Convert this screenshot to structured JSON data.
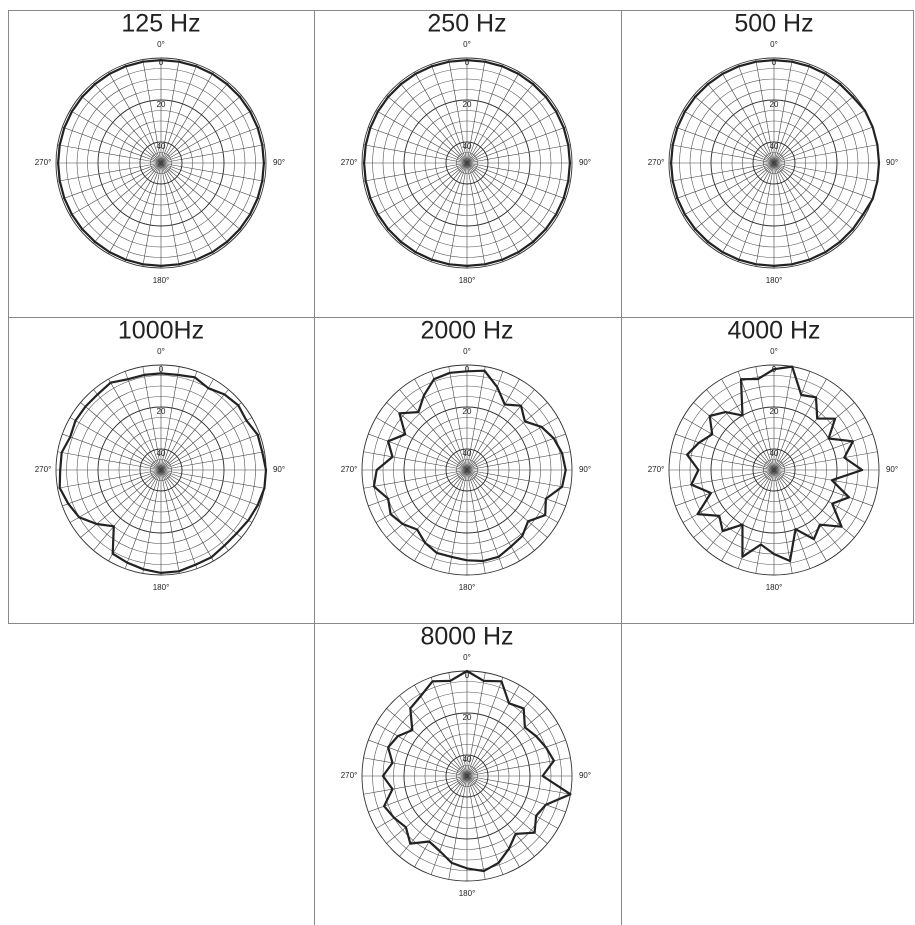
{
  "chart_data": [
    {
      "type": "polar",
      "title": "125 Hz",
      "color": "#222222",
      "theta": [
        0,
        10,
        20,
        30,
        40,
        50,
        60,
        70,
        80,
        90,
        100,
        110,
        120,
        130,
        140,
        150,
        160,
        170,
        180,
        190,
        200,
        210,
        220,
        230,
        240,
        250,
        260,
        270,
        280,
        290,
        300,
        310,
        320,
        330,
        340,
        350
      ],
      "values": [
        1,
        1,
        1,
        1,
        1,
        1,
        1,
        1,
        1,
        1,
        1,
        1,
        1,
        1,
        1,
        1,
        1,
        1,
        1,
        1,
        1,
        1,
        1,
        1,
        1,
        1,
        1,
        1,
        1,
        1,
        1,
        1,
        1,
        1,
        1,
        1
      ],
      "rlim": [
        50,
        0
      ],
      "rticks": [
        0,
        20,
        40
      ],
      "rgrid": [
        5,
        10,
        15,
        20,
        25,
        30,
        35,
        40,
        45
      ],
      "thetaticks": [
        {
          "value": 0,
          "label": "0°"
        },
        {
          "value": 90,
          "label": "90°"
        },
        {
          "value": 180,
          "label": "180°"
        },
        {
          "value": 270,
          "label": "270°"
        }
      ]
    },
    {
      "type": "polar",
      "title": "250 Hz",
      "color": "#222222",
      "theta": [
        0,
        10,
        20,
        30,
        40,
        50,
        60,
        70,
        80,
        90,
        100,
        110,
        120,
        130,
        140,
        150,
        160,
        170,
        180,
        190,
        200,
        210,
        220,
        230,
        240,
        250,
        260,
        270,
        280,
        290,
        300,
        310,
        320,
        330,
        340,
        350
      ],
      "values": [
        1,
        1,
        1,
        1,
        1,
        1,
        1,
        1,
        1,
        1,
        1,
        1,
        1,
        1,
        1,
        1,
        1,
        1,
        1,
        1,
        1,
        1,
        1,
        1,
        1,
        1,
        1,
        1,
        1,
        1,
        1,
        1,
        1,
        1,
        1,
        1
      ],
      "rlim": [
        50,
        0
      ],
      "rticks": [
        0,
        20,
        40
      ],
      "rgrid": [
        5,
        10,
        15,
        20,
        25,
        30,
        35,
        40,
        45
      ],
      "thetaticks": [
        {
          "value": 0,
          "label": "0°"
        },
        {
          "value": 90,
          "label": "90°"
        },
        {
          "value": 180,
          "label": "180°"
        },
        {
          "value": 270,
          "label": "270°"
        }
      ]
    },
    {
      "type": "polar",
      "title": "500 Hz",
      "color": "#222222",
      "theta": [
        0,
        10,
        20,
        30,
        40,
        50,
        60,
        70,
        80,
        90,
        100,
        110,
        120,
        130,
        140,
        150,
        160,
        170,
        180,
        190,
        200,
        210,
        220,
        230,
        240,
        250,
        260,
        270,
        280,
        290,
        300,
        310,
        320,
        330,
        340,
        350
      ],
      "values": [
        1,
        1,
        1,
        1,
        1,
        1,
        0,
        0,
        0,
        0,
        0,
        0,
        1,
        1,
        1,
        1,
        1,
        1,
        1,
        1,
        1,
        1,
        1,
        1,
        1,
        1,
        1,
        1,
        1,
        1,
        1,
        1,
        1,
        1,
        1,
        1
      ],
      "rlim": [
        50,
        0
      ],
      "rticks": [
        0,
        20,
        40
      ],
      "rgrid": [
        5,
        10,
        15,
        20,
        25,
        30,
        35,
        40,
        45
      ],
      "thetaticks": [
        {
          "value": 0,
          "label": "0°"
        },
        {
          "value": 90,
          "label": "90°"
        },
        {
          "value": 180,
          "label": "180°"
        },
        {
          "value": 270,
          "label": "270°"
        }
      ]
    },
    {
      "type": "polar",
      "title": "1000Hz",
      "color": "#222222",
      "theta": [
        0,
        10,
        20,
        30,
        40,
        50,
        60,
        70,
        80,
        90,
        100,
        110,
        120,
        130,
        140,
        150,
        160,
        170,
        180,
        190,
        200,
        210,
        220,
        230,
        240,
        250,
        260,
        270,
        280,
        290,
        300,
        310,
        320,
        330,
        340,
        350
      ],
      "values": [
        4,
        4,
        3,
        5,
        3,
        2,
        3,
        1,
        1,
        0,
        0,
        1,
        2,
        3,
        3,
        2,
        2,
        1,
        1,
        2,
        3,
        4,
        15,
        10,
        5,
        3,
        1,
        2,
        2,
        4,
        3,
        3,
        3,
        2,
        4,
        4
      ],
      "rlim": [
        50,
        0
      ],
      "rticks": [
        0,
        20,
        40
      ],
      "rgrid": [
        5,
        10,
        15,
        20,
        25,
        30,
        35,
        40,
        45
      ],
      "thetaticks": [
        {
          "value": 0,
          "label": "0°"
        },
        {
          "value": 90,
          "label": "90°"
        },
        {
          "value": 180,
          "label": "180°"
        },
        {
          "value": 270,
          "label": "270°"
        }
      ]
    },
    {
      "type": "polar",
      "title": "2000 Hz",
      "color": "#222222",
      "theta": [
        0,
        10,
        20,
        30,
        40,
        50,
        60,
        70,
        80,
        90,
        100,
        110,
        120,
        130,
        140,
        150,
        160,
        170,
        180,
        190,
        200,
        210,
        220,
        230,
        240,
        250,
        260,
        270,
        280,
        290,
        300,
        310,
        320,
        330,
        340,
        350
      ],
      "values": [
        3,
        2,
        8,
        14,
        10,
        14,
        9,
        6,
        4,
        3,
        4,
        10,
        7,
        12,
        9,
        8,
        6,
        6,
        7,
        8,
        8,
        10,
        13,
        10,
        8,
        10,
        5,
        7,
        14,
        10,
        16,
        8,
        14,
        9,
        4,
        3
      ],
      "rlim": [
        50,
        0
      ],
      "rticks": [
        0,
        20,
        40
      ],
      "rgrid": [
        5,
        10,
        15,
        20,
        25,
        30,
        35,
        40,
        45
      ],
      "thetaticks": [
        {
          "value": 0,
          "label": "0°"
        },
        {
          "value": 90,
          "label": "90°"
        },
        {
          "value": 180,
          "label": "180°"
        },
        {
          "value": 270,
          "label": "270°"
        }
      ]
    },
    {
      "type": "polar",
      "title": "4000 Hz",
      "color": "#222222",
      "theta": [
        0,
        10,
        20,
        30,
        40,
        50,
        60,
        70,
        80,
        90,
        100,
        110,
        120,
        130,
        140,
        150,
        160,
        170,
        180,
        190,
        200,
        210,
        220,
        230,
        240,
        250,
        260,
        270,
        280,
        290,
        300,
        310,
        320,
        330,
        340,
        350
      ],
      "values": [
        2,
        0,
        12,
        10,
        18,
        12,
        20,
        10,
        16,
        8,
        22,
        12,
        18,
        8,
        16,
        12,
        20,
        6,
        10,
        14,
        6,
        20,
        12,
        16,
        8,
        18,
        10,
        14,
        8,
        12,
        16,
        10,
        14,
        20,
        4,
        6
      ],
      "rlim": [
        50,
        0
      ],
      "rticks": [
        0,
        20,
        40
      ],
      "rgrid": [
        5,
        10,
        15,
        20,
        25,
        30,
        35,
        40,
        45
      ],
      "thetaticks": [
        {
          "value": 0,
          "label": "0°"
        },
        {
          "value": 90,
          "label": "90°"
        },
        {
          "value": 180,
          "label": "180°"
        },
        {
          "value": 270,
          "label": "270°"
        }
      ]
    },
    {
      "type": "polar",
      "title": "8000 Hz",
      "color": "#222222",
      "theta": [
        0,
        10,
        20,
        30,
        40,
        50,
        60,
        70,
        80,
        90,
        100,
        110,
        120,
        130,
        140,
        150,
        160,
        170,
        180,
        190,
        200,
        210,
        220,
        230,
        240,
        250,
        260,
        270,
        280,
        290,
        300,
        310,
        320,
        330,
        340,
        350
      ],
      "values": [
        0,
        4,
        2,
        10,
        8,
        14,
        12,
        10,
        8,
        14,
        0,
        10,
        12,
        8,
        14,
        10,
        6,
        4,
        6,
        8,
        12,
        14,
        8,
        12,
        10,
        8,
        14,
        10,
        14,
        10,
        12,
        16,
        8,
        6,
        2,
        4
      ],
      "rlim": [
        50,
        0
      ],
      "rticks": [
        0,
        20,
        40
      ],
      "rgrid": [
        5,
        10,
        15,
        20,
        25,
        30,
        35,
        40,
        45
      ],
      "thetaticks": [
        {
          "value": 0,
          "label": "0°"
        },
        {
          "value": 90,
          "label": "90°"
        },
        {
          "value": 180,
          "label": "180°"
        },
        {
          "value": 270,
          "label": "270°"
        }
      ]
    }
  ]
}
